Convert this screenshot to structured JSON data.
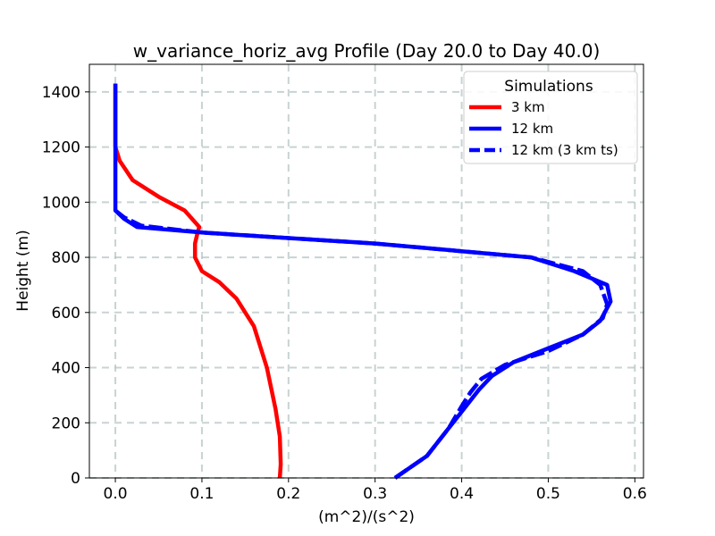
{
  "chart_data": {
    "type": "line",
    "title": "w_variance_horiz_avg Profile (Day 20.0 to Day 40.0)",
    "xlabel": "(m^2)/(s^2)",
    "ylabel": "Height (m)",
    "xlim": [
      -0.03,
      0.61
    ],
    "ylim": [
      0,
      1500
    ],
    "xticks": [
      0.0,
      0.1,
      0.2,
      0.3,
      0.4,
      0.5,
      0.6
    ],
    "xtick_labels": [
      "0.0",
      "0.1",
      "0.2",
      "0.3",
      "0.4",
      "0.5",
      "0.6"
    ],
    "yticks": [
      0,
      200,
      400,
      600,
      800,
      1000,
      1200,
      1400
    ],
    "ytick_labels": [
      "0",
      "200",
      "400",
      "600",
      "800",
      "1000",
      "1200",
      "1400"
    ],
    "grid": true,
    "legend": {
      "title": "Simulations",
      "placement": "top-right"
    },
    "series": [
      {
        "name": "3 km",
        "color": "#ff0000",
        "dash": "solid",
        "x": [
          0.19,
          0.191,
          0.19,
          0.185,
          0.175,
          0.16,
          0.14,
          0.12,
          0.1,
          0.092,
          0.092,
          0.095,
          0.097,
          0.08,
          0.05,
          0.02,
          0.005,
          0.0,
          0.0,
          0.0
        ],
        "y": [
          0,
          50,
          150,
          250,
          400,
          550,
          650,
          710,
          750,
          800,
          850,
          890,
          910,
          970,
          1020,
          1080,
          1150,
          1200,
          1300,
          1430
        ]
      },
      {
        "name": "12 km",
        "color": "#0000ff",
        "dash": "solid",
        "x": [
          0.323,
          0.36,
          0.385,
          0.405,
          0.42,
          0.435,
          0.46,
          0.5,
          0.54,
          0.56,
          0.572,
          0.568,
          0.53,
          0.48,
          0.3,
          0.1,
          0.025,
          0.01,
          0.0,
          0.0,
          0.0,
          0.0
        ],
        "y": [
          0,
          80,
          180,
          260,
          320,
          370,
          420,
          470,
          520,
          570,
          640,
          700,
          750,
          800,
          850,
          890,
          910,
          940,
          970,
          1050,
          1200,
          1430
        ]
      },
      {
        "name": "12 km (3 km ts)",
        "color": "#0000ff",
        "dash": "dashed",
        "x": [
          0.323,
          0.36,
          0.385,
          0.4,
          0.41,
          0.423,
          0.45,
          0.5,
          0.54,
          0.563,
          0.568,
          0.56,
          0.54,
          0.48,
          0.3,
          0.1,
          0.03,
          0.01,
          0.0
        ],
        "y": [
          0,
          80,
          180,
          260,
          310,
          360,
          410,
          460,
          520,
          580,
          630,
          700,
          750,
          800,
          850,
          890,
          915,
          945,
          970
        ]
      }
    ]
  }
}
